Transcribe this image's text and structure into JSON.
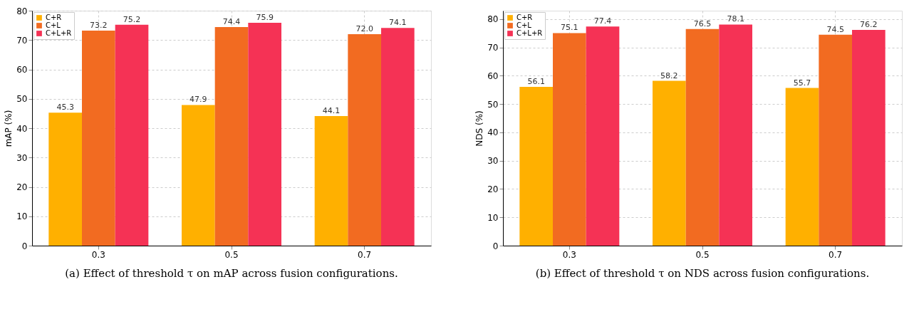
{
  "chart_data": [
    {
      "type": "bar",
      "categories": [
        "0.3",
        "0.5",
        "0.7"
      ],
      "ylabel": "mAP (%)",
      "ylim": [
        0,
        80
      ],
      "yticks": [
        0,
        10,
        20,
        30,
        40,
        50,
        60,
        70,
        80
      ],
      "grid": true,
      "legend": "top left",
      "data_labels": true,
      "series": [
        {
          "name": "C+R",
          "color": "#ffb000",
          "values": [
            45.3,
            47.9,
            44.1
          ]
        },
        {
          "name": "C+L",
          "color": "#f26b21",
          "values": [
            73.2,
            74.4,
            72.0
          ],
          "value_labels": [
            "73.2",
            "74.4",
            "72.0"
          ]
        },
        {
          "name": "C+L+R",
          "color": "#f53255",
          "values": [
            75.2,
            75.9,
            74.1
          ]
        }
      ],
      "annotations": [
        "(a) Effect of threshold τ on mAP across fusion configurations."
      ]
    },
    {
      "type": "bar",
      "categories": [
        "0.3",
        "0.5",
        "0.7"
      ],
      "ylabel": "NDS (%)",
      "ylim": [
        0,
        83
      ],
      "yticks": [
        0,
        10,
        20,
        30,
        40,
        50,
        60,
        70,
        80
      ],
      "grid": true,
      "legend": "top left",
      "data_labels": true,
      "series": [
        {
          "name": "C+R",
          "color": "#ffb000",
          "values": [
            56.1,
            58.2,
            55.7
          ]
        },
        {
          "name": "C+L",
          "color": "#f26b21",
          "values": [
            75.1,
            76.5,
            74.5
          ]
        },
        {
          "name": "C+L+R",
          "color": "#f53255",
          "values": [
            77.4,
            78.1,
            76.2
          ]
        }
      ],
      "annotations": [
        "(b) Effect of threshold τ on NDS across fusion configurations."
      ]
    }
  ]
}
